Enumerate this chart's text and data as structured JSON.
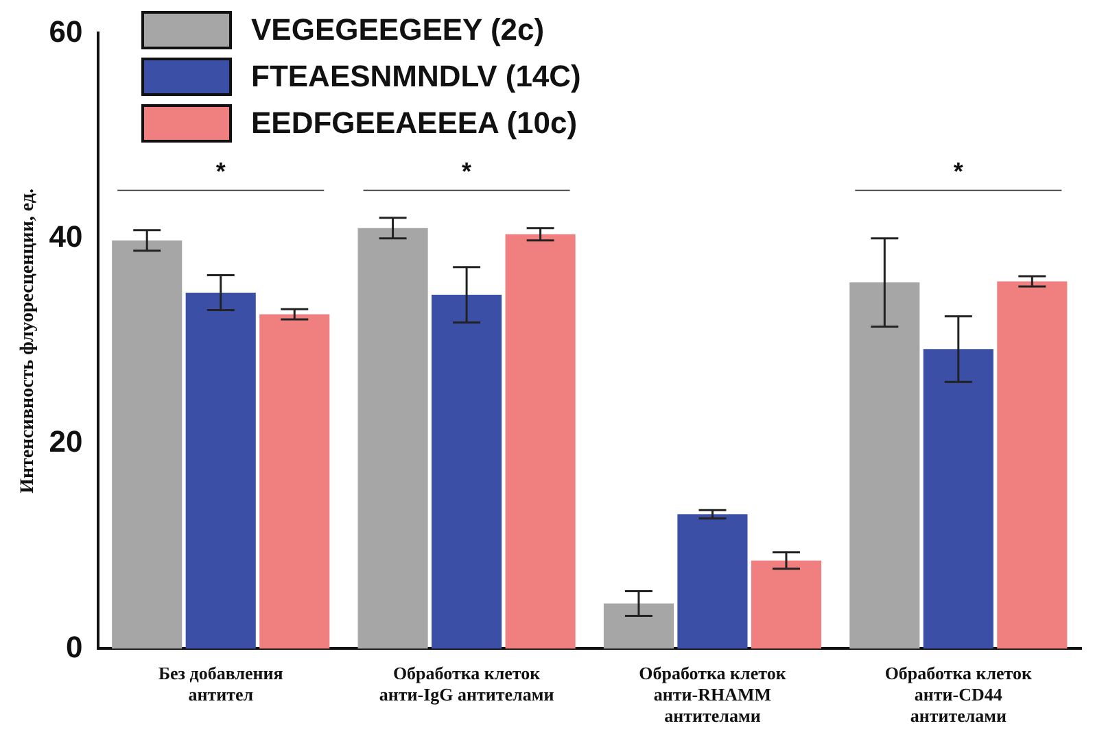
{
  "chart_data": {
    "type": "bar",
    "ylabel": "Интенсивность флуоресценции, ед.",
    "categories": [
      "Без добавления антител",
      "Обработка клеток анти-IgG антителами",
      "Обработка клеток анти-RHAMM антителами",
      "Обработка клеток анти-CD44 антителами"
    ],
    "series": [
      {
        "name": "VEGEGEEGEEY (2c)",
        "color": "#a6a6a6",
        "values": [
          39.8,
          41.0,
          4.4,
          35.7
        ],
        "errors": [
          1.0,
          1.0,
          1.2,
          4.3
        ]
      },
      {
        "name": "FTEAESNMNDLV (14C)",
        "color": "#3b4fa6",
        "values": [
          34.7,
          34.5,
          13.1,
          29.2
        ],
        "errors": [
          1.7,
          2.7,
          0.4,
          3.2
        ]
      },
      {
        "name": "EEDFGEEAEEEA (10c)",
        "color": "#f08080",
        "values": [
          32.6,
          40.4,
          8.6,
          35.8
        ],
        "errors": [
          0.5,
          0.6,
          0.8,
          0.5
        ]
      }
    ],
    "ylim": [
      0,
      60
    ],
    "yticks": [
      0,
      20,
      40,
      60
    ],
    "grid": false,
    "legend": "top left",
    "annotations": [
      "*",
      "*",
      "*"
    ]
  }
}
